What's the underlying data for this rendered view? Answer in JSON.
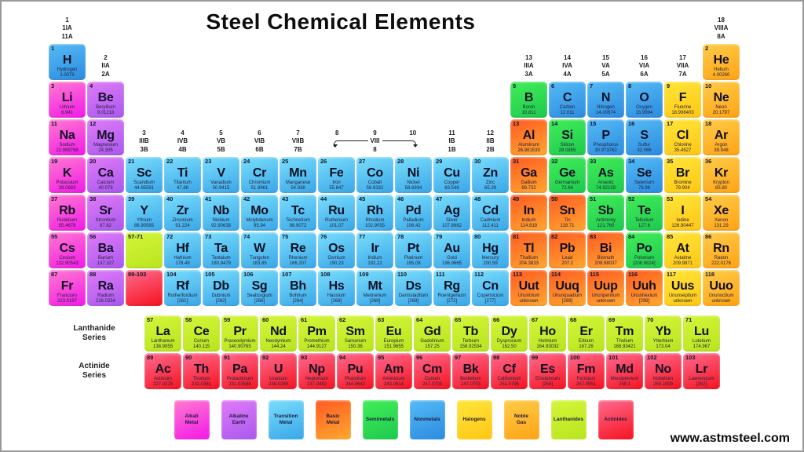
{
  "title": "Steel Chemical Elements",
  "website": "www.astmsteel.com",
  "series": {
    "lanthanide": [
      "Lanthanide",
      "Series"
    ],
    "actinide": [
      "Actinide",
      "Series"
    ]
  },
  "colors": {
    "alkali": [
      "#FF7BCF",
      "#F318E8"
    ],
    "alkaline": [
      "#E07BF8",
      "#A958EE"
    ],
    "transition": [
      "#7ADEFC",
      "#38A6E8"
    ],
    "basic": [
      "#FF5A22",
      "#FFA82F"
    ],
    "semimetal": [
      "#42EE58",
      "#1DC94E"
    ],
    "nonmetal": [
      "#55BBF5",
      "#2B8BE0"
    ],
    "halogen": [
      "#FFE63A",
      "#FFC614"
    ],
    "noble": [
      "#FFCC48",
      "#FFA315"
    ],
    "lanthanide": [
      "#D4F53A",
      "#B8E51E"
    ],
    "actinide": [
      "#FF6B8F",
      "#F5121F"
    ]
  },
  "group_labels": [
    {
      "col": 1,
      "row": 1,
      "lines": [
        "1",
        "1IA",
        "11A"
      ]
    },
    {
      "col": 18,
      "row": 1,
      "lines": [
        "18",
        "VIIIA",
        "8A"
      ]
    },
    {
      "col": 2,
      "row": 2,
      "lines": [
        "2",
        "IIA",
        "2A"
      ]
    },
    {
      "col": 13,
      "row": 2,
      "lines": [
        "13",
        "IIIA",
        "3A"
      ]
    },
    {
      "col": 14,
      "row": 2,
      "lines": [
        "14",
        "IVA",
        "4A"
      ]
    },
    {
      "col": 15,
      "row": 2,
      "lines": [
        "15",
        "VA",
        "5A"
      ]
    },
    {
      "col": 16,
      "row": 2,
      "lines": [
        "16",
        "VIA",
        "6A"
      ]
    },
    {
      "col": 17,
      "row": 2,
      "lines": [
        "17",
        "VIIA",
        "7A"
      ]
    },
    {
      "col": 3,
      "row": 4,
      "lines": [
        "3",
        "IIIB",
        "3B"
      ]
    },
    {
      "col": 4,
      "row": 4,
      "lines": [
        "4",
        "IVB",
        "4B"
      ]
    },
    {
      "col": 5,
      "row": 4,
      "lines": [
        "5",
        "VB",
        "5B"
      ]
    },
    {
      "col": 6,
      "row": 4,
      "lines": [
        "6",
        "VIB",
        "6B"
      ]
    },
    {
      "col": 7,
      "row": 4,
      "lines": [
        "7",
        "VIIB",
        "7B"
      ]
    },
    {
      "col": 11,
      "row": 4,
      "lines": [
        "11",
        "IB",
        "1B"
      ]
    },
    {
      "col": 12,
      "row": 4,
      "lines": [
        "12",
        "IIB",
        "2B"
      ]
    }
  ],
  "group_viii": {
    "row": 4,
    "cols": [
      8,
      10
    ],
    "numbers": [
      "8",
      "9",
      "10"
    ],
    "label": "VIII",
    "sub": "8"
  },
  "element_fields": [
    "atomic_number",
    "symbol",
    "name",
    "mass",
    "category",
    "row",
    "col"
  ],
  "elements": [
    [
      1,
      "H",
      "Hydrogen",
      "1.0079",
      "nonmetal",
      1,
      1
    ],
    [
      2,
      "He",
      "Helium",
      "4.00260",
      "noble",
      1,
      18
    ],
    [
      3,
      "Li",
      "Lithium",
      "6.941",
      "alkali",
      2,
      1
    ],
    [
      4,
      "Be",
      "Beryllium",
      "9.01218",
      "alkaline",
      2,
      2
    ],
    [
      5,
      "B",
      "Boron",
      "10.811",
      "semimetal",
      2,
      13
    ],
    [
      6,
      "C",
      "Carbon",
      "12.011",
      "nonmetal",
      2,
      14
    ],
    [
      7,
      "N",
      "Nitrogen",
      "14.00674",
      "nonmetal",
      2,
      15
    ],
    [
      8,
      "O",
      "Oxygen",
      "15.9994",
      "nonmetal",
      2,
      16
    ],
    [
      9,
      "F",
      "Fluorine",
      "18.998403",
      "halogen",
      2,
      17
    ],
    [
      10,
      "Ne",
      "Neon",
      "20.1797",
      "noble",
      2,
      18
    ],
    [
      11,
      "Na",
      "Sodium",
      "22.989768",
      "alkali",
      3,
      1
    ],
    [
      12,
      "Mg",
      "Magnesium",
      "24.305",
      "alkaline",
      3,
      2
    ],
    [
      13,
      "Al",
      "Aluminum",
      "26.981539",
      "basic",
      3,
      13
    ],
    [
      14,
      "Si",
      "Silicon",
      "28.0855",
      "semimetal",
      3,
      14
    ],
    [
      15,
      "P",
      "Phosphorus",
      "30.973762",
      "nonmetal",
      3,
      15
    ],
    [
      16,
      "S",
      "Sulfur",
      "32.066",
      "nonmetal",
      3,
      16
    ],
    [
      17,
      "Cl",
      "Chlorine",
      "35.4527",
      "halogen",
      3,
      17
    ],
    [
      18,
      "Ar",
      "Argon",
      "39.948",
      "noble",
      3,
      18
    ],
    [
      19,
      "K",
      "Potassium",
      "39.0983",
      "alkali",
      4,
      1
    ],
    [
      20,
      "Ca",
      "Calcium",
      "40.078",
      "alkaline",
      4,
      2
    ],
    [
      21,
      "Sc",
      "Scandium",
      "44.95591",
      "transition",
      4,
      3
    ],
    [
      22,
      "Ti",
      "Titanium",
      "47.88",
      "transition",
      4,
      4
    ],
    [
      23,
      "V",
      "Vanadium",
      "50.9415",
      "transition",
      4,
      5
    ],
    [
      24,
      "Cr",
      "Chromium",
      "51.9961",
      "transition",
      4,
      6
    ],
    [
      25,
      "Mn",
      "Manganese",
      "54.938",
      "transition",
      4,
      7
    ],
    [
      26,
      "Fe",
      "Iron",
      "55.847",
      "transition",
      4,
      8
    ],
    [
      27,
      "Co",
      "Cobalt",
      "58.9332",
      "transition",
      4,
      9
    ],
    [
      28,
      "Ni",
      "Nickel",
      "58.6934",
      "transition",
      4,
      10
    ],
    [
      29,
      "Cu",
      "Copper",
      "63.546",
      "transition",
      4,
      11
    ],
    [
      30,
      "Zn",
      "Zinc",
      "65.39",
      "transition",
      4,
      12
    ],
    [
      31,
      "Ga",
      "Gallium",
      "69.732",
      "basic",
      4,
      13
    ],
    [
      32,
      "Ge",
      "Germanium",
      "72.64",
      "semimetal",
      4,
      14
    ],
    [
      33,
      "As",
      "Arsenic",
      "74.92159",
      "semimetal",
      4,
      15
    ],
    [
      34,
      "Se",
      "Selenium",
      "78.96",
      "nonmetal",
      4,
      16
    ],
    [
      35,
      "Br",
      "Bromine",
      "79.904",
      "halogen",
      4,
      17
    ],
    [
      36,
      "Kr",
      "Krypton",
      "83.80",
      "noble",
      4,
      18
    ],
    [
      37,
      "Rb",
      "Rubidium",
      "85.4678",
      "alkali",
      5,
      1
    ],
    [
      38,
      "Sr",
      "Strontium",
      "87.62",
      "alkaline",
      5,
      2
    ],
    [
      39,
      "Y",
      "Yttrium",
      "88.90585",
      "transition",
      5,
      3
    ],
    [
      40,
      "Zr",
      "Zirconium",
      "91.224",
      "transition",
      5,
      4
    ],
    [
      41,
      "Nb",
      "Niobium",
      "92.90638",
      "transition",
      5,
      5
    ],
    [
      42,
      "Mo",
      "Molybdenum",
      "95.94",
      "transition",
      5,
      6
    ],
    [
      43,
      "Tc",
      "Technetium",
      "98.9072",
      "transition",
      5,
      7
    ],
    [
      44,
      "Ru",
      "Ruthenium",
      "101.07",
      "transition",
      5,
      8
    ],
    [
      45,
      "Rh",
      "Rhodium",
      "102.9055",
      "transition",
      5,
      9
    ],
    [
      46,
      "Pd",
      "Palladium",
      "106.42",
      "transition",
      5,
      10
    ],
    [
      47,
      "Ag",
      "Silver",
      "107.8682",
      "transition",
      5,
      11
    ],
    [
      48,
      "Cd",
      "Cadmium",
      "112.411",
      "transition",
      5,
      12
    ],
    [
      49,
      "In",
      "Indium",
      "114.818",
      "basic",
      5,
      13
    ],
    [
      50,
      "Sn",
      "Tin",
      "118.71",
      "basic",
      5,
      14
    ],
    [
      51,
      "Sb",
      "Antimony",
      "121.760",
      "semimetal",
      5,
      15
    ],
    [
      52,
      "Te",
      "Tellurium",
      "127.6",
      "semimetal",
      5,
      16
    ],
    [
      53,
      "I",
      "Iodine",
      "126.90447",
      "halogen",
      5,
      17
    ],
    [
      54,
      "Xe",
      "Xenon",
      "131.29",
      "noble",
      5,
      18
    ],
    [
      55,
      "Cs",
      "Cesium",
      "132.90543",
      "alkali",
      6,
      1
    ],
    [
      56,
      "Ba",
      "Barium",
      "137.327",
      "alkaline",
      6,
      2
    ],
    [
      72,
      "Hf",
      "Hafnium",
      "178.49",
      "transition",
      6,
      4
    ],
    [
      73,
      "Ta",
      "Tantalum",
      "180.9479",
      "transition",
      6,
      5
    ],
    [
      74,
      "W",
      "Tungsten",
      "183.85",
      "transition",
      6,
      6
    ],
    [
      75,
      "Re",
      "Rhenium",
      "186.207",
      "transition",
      6,
      7
    ],
    [
      76,
      "Os",
      "Osmium",
      "190.23",
      "transition",
      6,
      8
    ],
    [
      77,
      "Ir",
      "Iridium",
      "192.22",
      "transition",
      6,
      9
    ],
    [
      78,
      "Pt",
      "Platinum",
      "195.08",
      "transition",
      6,
      10
    ],
    [
      79,
      "Au",
      "Gold",
      "196.9665",
      "transition",
      6,
      11
    ],
    [
      80,
      "Hg",
      "Mercury",
      "200.59",
      "transition",
      6,
      12
    ],
    [
      81,
      "Tl",
      "Thallium",
      "204.3833",
      "basic",
      6,
      13
    ],
    [
      82,
      "Pb",
      "Lead",
      "207.2",
      "basic",
      6,
      14
    ],
    [
      83,
      "Bi",
      "Bismuth",
      "208.98037",
      "basic",
      6,
      15
    ],
    [
      84,
      "Po",
      "Polonium",
      "[208.9824]",
      "semimetal",
      6,
      16
    ],
    [
      85,
      "At",
      "Astatine",
      "209.9871",
      "halogen",
      6,
      17
    ],
    [
      86,
      "Rn",
      "Radon",
      "222.0176",
      "noble",
      6,
      18
    ],
    [
      87,
      "Fr",
      "Francium",
      "223.0197",
      "alkali",
      7,
      1
    ],
    [
      88,
      "Ra",
      "Radium",
      "226.0254",
      "alkaline",
      7,
      2
    ],
    [
      104,
      "Rf",
      "Rutherfordium",
      "[261]",
      "transition",
      7,
      4
    ],
    [
      105,
      "Db",
      "Dubnium",
      "[262]",
      "transition",
      7,
      5
    ],
    [
      106,
      "Sg",
      "Seaborgium",
      "[266]",
      "transition",
      7,
      6
    ],
    [
      107,
      "Bh",
      "Bohrium",
      "[264]",
      "transition",
      7,
      7
    ],
    [
      108,
      "Hs",
      "Hassium",
      "[269]",
      "transition",
      7,
      8
    ],
    [
      109,
      "Mt",
      "Meitnerium",
      "[268]",
      "transition",
      7,
      9
    ],
    [
      110,
      "Ds",
      "Darmstadtium",
      "[269]",
      "transition",
      7,
      10
    ],
    [
      111,
      "Rg",
      "Roentgenium",
      "[272]",
      "transition",
      7,
      11
    ],
    [
      112,
      "Cn",
      "Copernicium",
      "[277]",
      "transition",
      7,
      12
    ],
    [
      113,
      "Uut",
      "Ununtrium",
      "unknown",
      "basic",
      7,
      13
    ],
    [
      114,
      "Uuq",
      "Ununquadium",
      "[289]",
      "basic",
      7,
      14
    ],
    [
      115,
      "Uup",
      "Ununpentium",
      "unknown",
      "basic",
      7,
      15
    ],
    [
      116,
      "Uuh",
      "Ununhexium",
      "[298]",
      "basic",
      7,
      16
    ],
    [
      117,
      "Uus",
      "Ununseptium",
      "unknown",
      "halogen",
      7,
      17
    ],
    [
      118,
      "Uuo",
      "Ununoctium",
      "unknown",
      "noble",
      7,
      18
    ]
  ],
  "placeholders": [
    {
      "label": "57-71",
      "category": "lanthanide",
      "row": 6,
      "col": 3
    },
    {
      "label": "89-103",
      "category": "actinide",
      "row": 7,
      "col": 3
    }
  ],
  "lanthanides": [
    [
      57,
      "La",
      "Lanthanum",
      "138.9055"
    ],
    [
      58,
      "Ce",
      "Cerium",
      "140.115"
    ],
    [
      59,
      "Pr",
      "Praseodymium",
      "140.90765"
    ],
    [
      60,
      "Nd",
      "Neodymium",
      "144.24"
    ],
    [
      61,
      "Pm",
      "Promethium",
      "144.9127"
    ],
    [
      62,
      "Sm",
      "Samarium",
      "150.36"
    ],
    [
      63,
      "Eu",
      "Europium",
      "151.9655"
    ],
    [
      64,
      "Gd",
      "Gadolinium",
      "157.25"
    ],
    [
      65,
      "Tb",
      "Terbium",
      "158.92534"
    ],
    [
      66,
      "Dy",
      "Dysprosium",
      "162.50"
    ],
    [
      67,
      "Ho",
      "Holmium",
      "164.93032"
    ],
    [
      68,
      "Er",
      "Erbium",
      "167.26"
    ],
    [
      69,
      "Tm",
      "Thulium",
      "168.93421"
    ],
    [
      70,
      "Yb",
      "Ytterbium",
      "173.04"
    ],
    [
      71,
      "Lu",
      "Lutetium",
      "174.967"
    ]
  ],
  "actinides": [
    [
      89,
      "Ac",
      "Actinium",
      "227.0278"
    ],
    [
      90,
      "Th",
      "Thorium",
      "232.0381"
    ],
    [
      91,
      "Pa",
      "Protactinium",
      "231.03588"
    ],
    [
      92,
      "U",
      "Uranium",
      "238.0289"
    ],
    [
      93,
      "Np",
      "Neptunium",
      "237.0482"
    ],
    [
      94,
      "Pu",
      "Plutonium",
      "244.0642"
    ],
    [
      95,
      "Am",
      "Americium",
      "243.0614"
    ],
    [
      96,
      "Cm",
      "Curium",
      "247.0703"
    ],
    [
      97,
      "Bk",
      "Berkelium",
      "247.0703"
    ],
    [
      98,
      "Cf",
      "Californium",
      "251.0796"
    ],
    [
      99,
      "Es",
      "Einsteinium",
      "[254]"
    ],
    [
      100,
      "Fm",
      "Fermium",
      "257.0951"
    ],
    [
      101,
      "Md",
      "Mendelevium",
      "258.1"
    ],
    [
      102,
      "No",
      "Nobelium",
      "259.1009"
    ],
    [
      103,
      "Lr",
      "Lawrencium",
      "[262]"
    ]
  ],
  "legend": [
    {
      "lines": [
        "Alkali",
        "Metal"
      ],
      "category": "alkali"
    },
    {
      "lines": [
        "Alkaline",
        "Earth"
      ],
      "category": "alkaline"
    },
    {
      "lines": [
        "Transition",
        "Metal"
      ],
      "category": "transition"
    },
    {
      "lines": [
        "Basic",
        "Metal"
      ],
      "category": "basic"
    },
    {
      "lines": [
        "Semimetals"
      ],
      "category": "semimetal"
    },
    {
      "lines": [
        "Nonmetals"
      ],
      "category": "nonmetal"
    },
    {
      "lines": [
        "Halogens"
      ],
      "category": "halogen"
    },
    {
      "lines": [
        "Noble",
        "Gas"
      ],
      "category": "noble"
    },
    {
      "lines": [
        "Lanthanides"
      ],
      "category": "lanthanide"
    },
    {
      "lines": [
        "Actinides"
      ],
      "category": "actinide"
    }
  ]
}
